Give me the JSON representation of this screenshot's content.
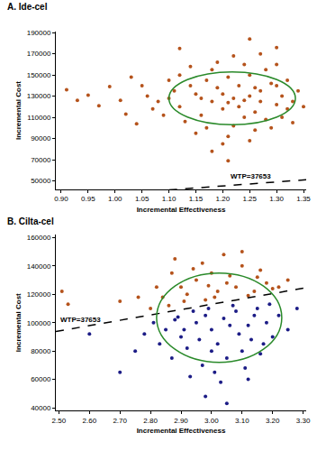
{
  "chart_data": [
    {
      "type": "scatter",
      "title": "A. Ide-cel",
      "x_label": "Incremental Effectiveness",
      "y_label": "Incremental Cost",
      "xlim": [
        0.89,
        1.355
      ],
      "ylim": [
        42000,
        191000
      ],
      "xticks": [
        {
          "value": 0.9,
          "label": "0.90"
        },
        0.95,
        {
          "value": 1.0,
          "label": "1.00"
        },
        1.05,
        {
          "value": 1.1,
          "label": "1.10"
        },
        1.15,
        {
          "value": 1.2,
          "label": "1.20"
        },
        1.25,
        {
          "value": 1.3,
          "label": "1.30"
        },
        1.35
      ],
      "yticks": [
        50000,
        70000,
        90000,
        110000,
        130000,
        150000,
        170000,
        190000
      ],
      "grid": false,
      "series": [
        {
          "color": "#b5531c",
          "marker": "circle",
          "x": [
            1.22,
            1.18,
            1.25,
            1.2,
            1.27,
            1.15,
            1.23,
            1.3,
            1.12,
            1.26,
            1.19,
            1.24,
            1.29,
            1.16,
            1.21,
            1.31,
            1.14,
            1.28,
            1.17,
            1.22,
            1.1,
            1.32,
            1.25,
            1.13,
            1.27,
            1.2,
            1.23,
            1.18,
            1.3,
            1.11,
            1.26,
            1.08,
            1.33,
            1.24,
            1.15,
            1.29,
            1.21,
            1.06,
            1.19,
            1.28,
            1.12,
            1.31,
            1.34,
            1.09,
            1.17,
            1.25,
            1.22,
            1.05,
            1.3,
            1.14,
            1.32,
            1.07,
            1.27,
            1.2,
            1.1,
            1.33,
            1.24,
            1.16,
            1.26,
            1.21,
            0.91,
            0.93,
            0.95,
            0.97,
            0.99,
            1.01,
            1.02,
            1.03,
            1.12,
            1.25,
            1.21,
            1.18,
            1.3,
            1.04,
            1.35
          ],
          "values": [
            128000,
            125000,
            130000,
            118000,
            135000,
            132000,
            140000,
            122000,
            120000,
            115000,
            138000,
            110000,
            142000,
            112000,
            148000,
            130000,
            140000,
            108000,
            145000,
            102000,
            128000,
            118000,
            150000,
            106000,
            125000,
            132000,
            120000,
            155000,
            140000,
            135000,
            98000,
            125000,
            125000,
            160000,
            95000,
            100000,
            92000,
            130000,
            162000,
            155000,
            150000,
            110000,
            135000,
            112000,
            100000,
            88000,
            168000,
            140000,
            160000,
            158000,
            145000,
            118000,
            170000,
            85000,
            145000,
            105000,
            126000,
            128000,
            138000,
            124000,
            136000,
            126000,
            131000,
            121000,
            139000,
            126000,
            113000,
            148000,
            175000,
            184000,
            69000,
            78000,
            176000,
            104000,
            120000
          ]
        }
      ],
      "ellipse": {
        "x": [
          1.1,
          1.335
        ],
        "y": [
          103000,
          153000
        ],
        "color": "#2a8a2a"
      },
      "wtp": {
        "value": 37653,
        "label": "WTP=37653",
        "line_style": "dashed",
        "color": "#000000"
      }
    },
    {
      "type": "scatter",
      "title": "B. Cilta-cel",
      "x_label": "Incremental Effectiveness",
      "y_label": "Incremental Cost",
      "xlim": [
        2.49,
        3.31
      ],
      "ylim": [
        38000,
        162000
      ],
      "xticks": [
        {
          "value": 2.5,
          "label": "2.50"
        },
        {
          "value": 2.6,
          "label": "2.60"
        },
        {
          "value": 2.7,
          "label": "2.70"
        },
        {
          "value": 2.8,
          "label": "2.80"
        },
        {
          "value": 2.9,
          "label": "2.90"
        },
        {
          "value": 3.0,
          "label": "3.00"
        },
        {
          "value": 3.1,
          "label": "3.10"
        },
        {
          "value": 3.2,
          "label": "3.20"
        },
        {
          "value": 3.3,
          "label": "3.30"
        }
      ],
      "yticks": [
        40000,
        60000,
        80000,
        100000,
        120000,
        140000,
        160000
      ],
      "grid": false,
      "series": [
        {
          "color": "#b5531c",
          "marker": "circle",
          "x": [
            2.51,
            2.53,
            2.84,
            2.9,
            2.95,
            3.0,
            3.05,
            3.1,
            3.15,
            2.88,
            2.92,
            2.98,
            3.02,
            3.08,
            3.12,
            3.18,
            3.2,
            2.86,
            2.8,
            2.94,
            3.04,
            3.1,
            2.97,
            3.14,
            3.22,
            2.82,
            2.76,
            2.99,
            3.06,
            2.91,
            2.7,
            3.16,
            3.01,
            2.87,
            3.25
          ],
          "values": [
            122000,
            113000,
            118000,
            125000,
            130000,
            135000,
            128000,
            140000,
            132000,
            145000,
            120000,
            116000,
            122000,
            125000,
            119000,
            128000,
            124000,
            112000,
            110000,
            138000,
            148000,
            150000,
            142000,
            122000,
            125000,
            125000,
            118000,
            126000,
            133000,
            115000,
            115000,
            137000,
            118000,
            135000,
            130000
          ]
        },
        {
          "color": "#1c1c86",
          "marker": "circle",
          "x": [
            3.04,
            3.0,
            3.08,
            2.95,
            3.12,
            2.9,
            3.15,
            3.02,
            2.98,
            3.1,
            2.85,
            3.18,
            3.05,
            2.92,
            3.2,
            2.88,
            3.07,
            2.97,
            3.13,
            2.83,
            3.22,
            2.94,
            3.01,
            3.16,
            2.87,
            3.09,
            2.99,
            3.11,
            2.81,
            3.25,
            2.93,
            3.14,
            2.78,
            3.03,
            3.19,
            2.96,
            3.06,
            2.89,
            3.17,
            2.75,
            2.6,
            3.05,
            2.98,
            2.7,
            3.28,
            3.0,
            2.91,
            3.12
          ],
          "values": [
            103000,
            95000,
            108000,
            100000,
            98000,
            90000,
            110000,
            85000,
            105000,
            80000,
            95000,
            100000,
            75000,
            82000,
            90000,
            102000,
            112000,
            70000,
            88000,
            85000,
            105000,
            108000,
            65000,
            78000,
            75000,
            92000,
            110000,
            68000,
            100000,
            95000,
            62000,
            105000,
            92000,
            58000,
            113000,
            88000,
            98000,
            104000,
            85000,
            80000,
            92000,
            43000,
            48000,
            65000,
            110000,
            80000,
            95000,
            60000
          ]
        }
      ],
      "ellipse": {
        "x": [
          2.82,
          3.23
        ],
        "y": [
          72000,
          135000
        ],
        "color": "#2a8a2a"
      },
      "wtp": {
        "value": 37653,
        "label": "WTP=37653",
        "line_style": "dashed",
        "color": "#000000"
      }
    }
  ]
}
